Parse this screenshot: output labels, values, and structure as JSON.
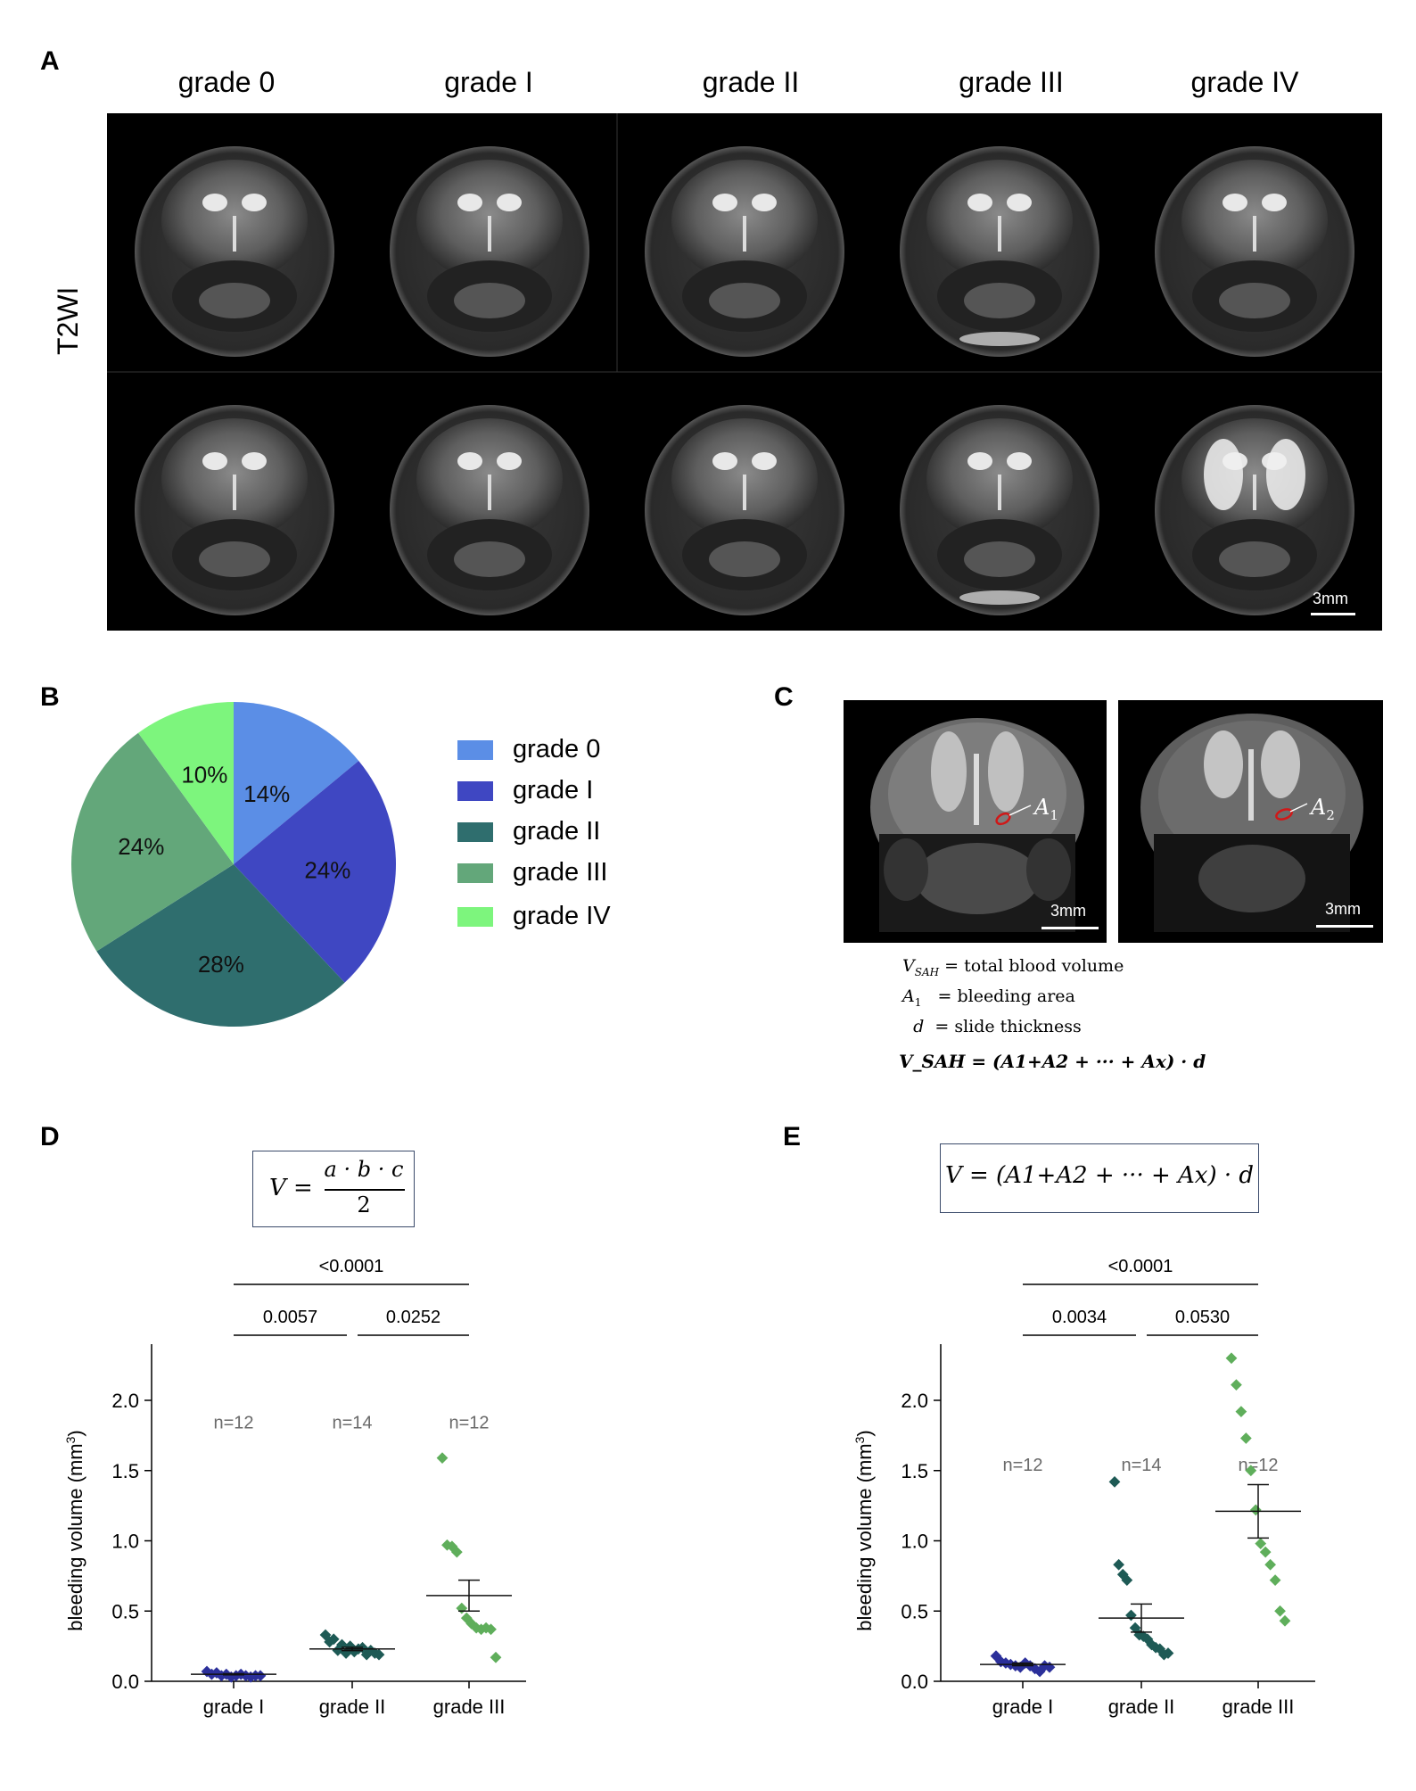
{
  "panels": {
    "a": "A",
    "b": "B",
    "c": "C",
    "d": "D",
    "e": "E"
  },
  "panel_a": {
    "grade_headers": [
      "grade 0",
      "grade I",
      "grade II",
      "grade III",
      "grade IV"
    ],
    "row_label": "T2WI",
    "scale_label": "3mm"
  },
  "panel_c": {
    "scale_label": "3mm",
    "region_labels": [
      "A",
      "A"
    ],
    "region_subs": [
      "1",
      "2"
    ],
    "definitions": [
      {
        "symbol": "V",
        "sub": "SAH",
        "text": "= total blood volume"
      },
      {
        "symbol": "A",
        "sub": "1",
        "text": "=  bleeding area"
      },
      {
        "symbol": "d",
        "sub": "",
        "text": "=  slide thickness"
      }
    ],
    "formula": "V_SAH = (A1+A2 + ··· + Ax) · d"
  },
  "panel_d": {
    "formula_left": "V =",
    "numerator": "a · b · c",
    "denominator": "2"
  },
  "panel_e": {
    "formula": "V = (A1+A2 + ··· + Ax) · d"
  },
  "colors": {
    "grade0": "#5b8ee6",
    "gradeI": "#3f47c2",
    "gradeII": "#2f6e6e",
    "gradeIII": "#63a77a",
    "gradeIV": "#7df57d",
    "dotI": "#2b2f9a",
    "dotII": "#1e5a55",
    "dotIII": "#5fae5b",
    "frame": "#3a4a6a"
  },
  "chart_data": [
    {
      "id": "pie",
      "type": "pie",
      "labels": [
        "grade 0",
        "grade I",
        "grade II",
        "grade III",
        "grade IV"
      ],
      "values": [
        14,
        24,
        28,
        24,
        10
      ],
      "value_labels": [
        "14%",
        "24%",
        "28%",
        "24%",
        "10%"
      ]
    },
    {
      "id": "scatter_d",
      "type": "scatter",
      "categories": [
        "grade I",
        "grade II",
        "grade III"
      ],
      "ylabel": "bleeding volume (mm",
      "ylabel_sup": "3",
      "ylabel_end": ")",
      "ylim": [
        0,
        2.4
      ],
      "yticks": [
        "0.0",
        "0.5",
        "1.0",
        "1.5",
        "2.0"
      ],
      "ytick_values": [
        0,
        0.5,
        1,
        1.5,
        2
      ],
      "n_labels": [
        "n=12",
        "n=14",
        "n=12"
      ],
      "n_y": 1.85,
      "series": [
        {
          "name": "grade I",
          "values": [
            0.07,
            0.05,
            0.06,
            0.04,
            0.05,
            0.03,
            0.04,
            0.05,
            0.04,
            0.03,
            0.04,
            0.04
          ],
          "mean": 0.05,
          "sem": 0.004
        },
        {
          "name": "grade II",
          "values": [
            0.33,
            0.28,
            0.3,
            0.22,
            0.26,
            0.2,
            0.25,
            0.21,
            0.23,
            0.24,
            0.19,
            0.22,
            0.2,
            0.19
          ],
          "mean": 0.23,
          "sem": 0.012
        },
        {
          "name": "grade III",
          "values": [
            1.59,
            0.97,
            0.96,
            0.92,
            0.52,
            0.45,
            0.41,
            0.38,
            0.37,
            0.38,
            0.37,
            0.17
          ],
          "mean": 0.61,
          "sem": 0.11
        }
      ],
      "comparisons": [
        {
          "from": 0,
          "to": 2,
          "label": "<0.0001",
          "level": 2
        },
        {
          "from": 0,
          "to": 1,
          "label": "0.0057",
          "level": 1
        },
        {
          "from": 1,
          "to": 2,
          "label": "0.0252",
          "level": 1
        }
      ]
    },
    {
      "id": "scatter_e",
      "type": "scatter",
      "categories": [
        "grade I",
        "grade II",
        "grade III"
      ],
      "ylabel": "bleeding volume (mm",
      "ylabel_sup": "3",
      "ylabel_end": ")",
      "ylim": [
        0,
        2.4
      ],
      "yticks": [
        "0.0",
        "0.5",
        "1.0",
        "1.5",
        "2.0"
      ],
      "ytick_values": [
        0,
        0.5,
        1,
        1.5,
        2
      ],
      "n_labels": [
        "n=12",
        "n=14",
        "n=12"
      ],
      "n_y": 1.55,
      "series": [
        {
          "name": "grade I",
          "values": [
            0.18,
            0.14,
            0.13,
            0.12,
            0.11,
            0.1,
            0.13,
            0.11,
            0.09,
            0.07,
            0.11,
            0.1
          ],
          "mean": 0.12,
          "sem": 0.009
        },
        {
          "name": "grade II",
          "values": [
            1.42,
            0.83,
            0.76,
            0.72,
            0.47,
            0.38,
            0.33,
            0.32,
            0.3,
            0.26,
            0.24,
            0.23,
            0.19,
            0.2
          ],
          "mean": 0.45,
          "sem": 0.1
        },
        {
          "name": "grade III",
          "values": [
            2.3,
            2.11,
            1.92,
            1.73,
            1.5,
            1.22,
            0.98,
            0.92,
            0.83,
            0.72,
            0.5,
            0.43
          ],
          "mean": 1.21,
          "sem": 0.19
        }
      ],
      "comparisons": [
        {
          "from": 0,
          "to": 2,
          "label": "<0.0001",
          "level": 2
        },
        {
          "from": 0,
          "to": 1,
          "label": "0.0034",
          "level": 1
        },
        {
          "from": 1,
          "to": 2,
          "label": "0.0530",
          "level": 1
        }
      ]
    }
  ]
}
